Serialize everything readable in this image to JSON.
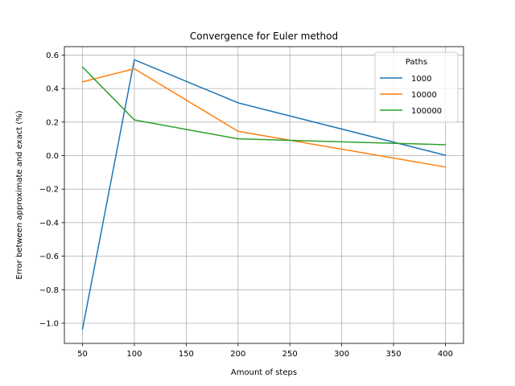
{
  "chart_data": {
    "type": "line",
    "title": "Convergence for Euler method",
    "xlabel": "Amount of steps",
    "ylabel": "Error between approximate and exact (%)",
    "xlim": [
      32.5,
      417.5
    ],
    "ylim": [
      -1.12,
      0.65
    ],
    "x_ticks": [
      50,
      100,
      150,
      200,
      250,
      300,
      350,
      400
    ],
    "x_tick_labels": [
      "50",
      "100",
      "150",
      "200",
      "250",
      "300",
      "350",
      "400"
    ],
    "y_ticks": [
      -1.0,
      -0.8,
      -0.6,
      -0.4,
      -0.2,
      0.0,
      0.2,
      0.4,
      0.6
    ],
    "y_tick_labels": [
      "−1.0",
      "−0.8",
      "−0.6",
      "−0.4",
      "−0.2",
      "0.0",
      "0.2",
      "0.4",
      "0.6"
    ],
    "grid": true,
    "legend": {
      "title": "Paths",
      "placement": "top-right"
    },
    "x": [
      50,
      100,
      200,
      400
    ],
    "series": [
      {
        "name": "1000",
        "color": "#1f77b4",
        "values": [
          -1.035,
          0.572,
          0.315,
          0.002
        ]
      },
      {
        "name": "10000",
        "color": "#ff7f0e",
        "values": [
          0.44,
          0.518,
          0.145,
          -0.068
        ]
      },
      {
        "name": "100000",
        "color": "#2ca02c",
        "values": [
          0.528,
          0.213,
          0.1,
          0.065
        ]
      }
    ]
  }
}
